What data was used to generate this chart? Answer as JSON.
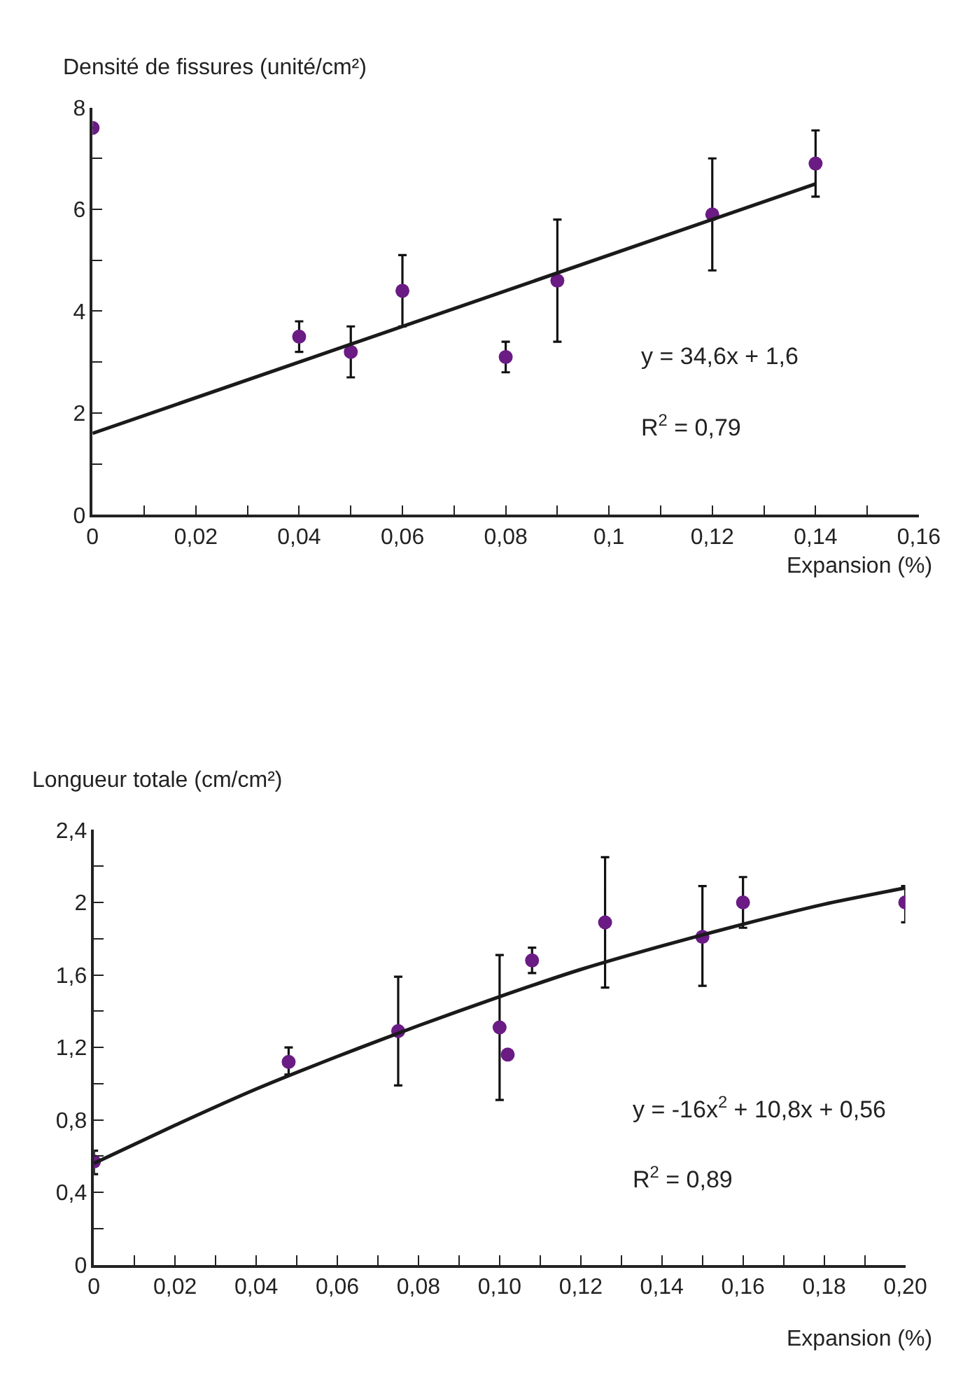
{
  "chart_data": [
    {
      "type": "scatter",
      "ylabel": "Densité de fissures (unité/cm²)",
      "xlabel": "Expansion (%)",
      "annotations": [
        "y = 34,6x + 1,6",
        "R$^{2}$ = 0,79"
      ],
      "x": [
        0,
        0.04,
        0.05,
        0.06,
        0.08,
        0.09,
        0.12,
        0.14
      ],
      "series": [
        {
          "color": "#6a1b84",
          "values": [
            7.6,
            3.5,
            3.2,
            4.4,
            3.1,
            4.6,
            5.9,
            6.9
          ],
          "errors": [
            null,
            [
              3.2,
              3.8
            ],
            [
              2.7,
              3.7
            ],
            [
              3.7,
              5.1
            ],
            [
              2.8,
              3.4
            ],
            [
              3.4,
              5.8
            ],
            [
              4.8,
              7.0
            ],
            [
              6.25,
              7.55
            ]
          ]
        },
        {
          "type": "line",
          "color": "#1a1a1a",
          "marker": "none",
          "x": [
            0,
            0.14
          ],
          "values": [
            1.6,
            6.5
          ]
        }
      ],
      "xlim": [
        0,
        0.16
      ],
      "ylim": [
        0,
        8
      ],
      "xticks": [
        0,
        {
          "value": 0.01,
          "label": null
        },
        {
          "value": 0.02,
          "label": "0,02"
        },
        {
          "value": 0.03,
          "label": null
        },
        {
          "value": 0.04,
          "label": "0,04"
        },
        {
          "value": 0.05,
          "label": null
        },
        {
          "value": 0.06,
          "label": "0,06"
        },
        {
          "value": 0.07,
          "label": null
        },
        {
          "value": 0.08,
          "label": "0,08"
        },
        {
          "value": 0.09,
          "label": null
        },
        {
          "value": 0.1,
          "label": "0,1"
        },
        {
          "value": 0.11,
          "label": null
        },
        {
          "value": 0.12,
          "label": "0,12"
        },
        {
          "value": 0.13,
          "label": null
        },
        {
          "value": 0.14,
          "label": "0,14"
        },
        {
          "value": 0.15,
          "label": null
        },
        {
          "value": 0.16,
          "label": "0,16"
        }
      ],
      "yticks": [
        0,
        {
          "value": 1,
          "label": null
        },
        2,
        {
          "value": 3,
          "label": null
        },
        4,
        {
          "value": 5,
          "label": null
        },
        6,
        {
          "value": 7,
          "label": null
        },
        8
      ],
      "marker": "circle",
      "line_style": "solid"
    },
    {
      "type": "scatter",
      "ylabel": "Longueur totale (cm/cm²)",
      "xlabel": "Expansion (%)",
      "annotations": [
        "y = -16x$^{2}$ + 10,8x + 0,56",
        "R$^{2}$ = 0,89"
      ],
      "x": [
        0,
        0.048,
        0.075,
        0.1,
        0.102,
        0.108,
        0.126,
        0.15,
        0.16,
        0.2
      ],
      "series": [
        {
          "color": "#6a1b84",
          "values": [
            0.57,
            1.12,
            1.29,
            1.31,
            1.16,
            1.68,
            1.89,
            1.81,
            2.0,
            2.0
          ],
          "errors": [
            [
              0.5,
              0.63
            ],
            [
              1.05,
              1.2
            ],
            [
              0.99,
              1.59
            ],
            [
              0.91,
              1.71
            ],
            null,
            [
              1.61,
              1.75
            ],
            [
              1.53,
              2.25
            ],
            [
              1.54,
              2.09
            ],
            [
              1.86,
              2.14
            ],
            [
              1.89,
              2.09
            ]
          ]
        },
        {
          "type": "line",
          "color": "#1a1a1a",
          "marker": "none",
          "x": [
            0,
            0.02,
            0.04,
            0.06,
            0.08,
            0.1,
            0.12,
            0.14,
            0.16,
            0.18,
            0.2
          ],
          "values": [
            0.56,
            0.77,
            0.97,
            1.15,
            1.32,
            1.48,
            1.63,
            1.76,
            1.88,
            1.99,
            2.08
          ]
        }
      ],
      "xlim": [
        0,
        0.2
      ],
      "ylim": [
        0,
        2.4
      ],
      "xticks": [
        0,
        {
          "value": 0.01,
          "label": null
        },
        {
          "value": 0.02,
          "label": "0,02"
        },
        {
          "value": 0.03,
          "label": null
        },
        {
          "value": 0.04,
          "label": "0,04"
        },
        {
          "value": 0.05,
          "label": null
        },
        {
          "value": 0.06,
          "label": "0,06"
        },
        {
          "value": 0.07,
          "label": null
        },
        {
          "value": 0.08,
          "label": "0,08"
        },
        {
          "value": 0.09,
          "label": null
        },
        {
          "value": 0.1,
          "label": "0,10"
        },
        {
          "value": 0.11,
          "label": null
        },
        {
          "value": 0.12,
          "label": "0,12"
        },
        {
          "value": 0.13,
          "label": null
        },
        {
          "value": 0.14,
          "label": "0,14"
        },
        {
          "value": 0.15,
          "label": null
        },
        {
          "value": 0.16,
          "label": "0,16"
        },
        {
          "value": 0.17,
          "label": null
        },
        {
          "value": 0.18,
          "label": "0,18"
        },
        {
          "value": 0.19,
          "label": null
        },
        {
          "value": 0.2,
          "label": "0,20"
        }
      ],
      "yticks": [
        0,
        {
          "value": 0.2,
          "label": null
        },
        {
          "value": 0.4,
          "label": "0,4"
        },
        {
          "value": 0.6,
          "label": null
        },
        {
          "value": 0.8,
          "label": "0,8"
        },
        {
          "value": 1.0,
          "label": null
        },
        {
          "value": 1.2,
          "label": "1,2"
        },
        {
          "value": 1.4,
          "label": null
        },
        {
          "value": 1.6,
          "label": "1,6"
        },
        {
          "value": 1.8,
          "label": null
        },
        2,
        {
          "value": 2.2,
          "label": null
        },
        {
          "value": 2.4,
          "label": "2,4"
        }
      ],
      "marker": "circle",
      "line_style": "solid"
    }
  ]
}
